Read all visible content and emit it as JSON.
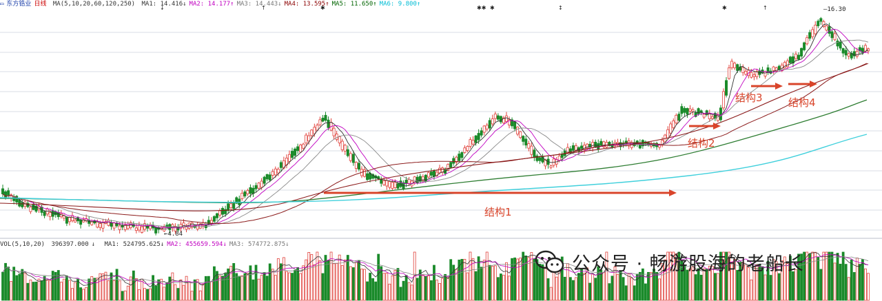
{
  "header": {
    "stock_name": "东方锆业",
    "period": "日线",
    "ma_params": "MA(5,10,20,60,120,250)",
    "ma_readouts": [
      {
        "label": "MA1:",
        "value": "14.416",
        "arrow": "↓",
        "color": "#333333"
      },
      {
        "label": "MA2:",
        "value": "14.177",
        "arrow": "↑",
        "color": "#c000c0"
      },
      {
        "label": "MA3:",
        "value": "14.443",
        "arrow": "↓",
        "color": "#777777"
      },
      {
        "label": "MA4:",
        "value": "13.595",
        "arrow": "↑",
        "color": "#8b0000"
      },
      {
        "label": "MA5:",
        "value": "11.650",
        "arrow": "↑",
        "color": "#006400"
      },
      {
        "label": "MA6:",
        "value": "9.800",
        "arrow": "↑",
        "color": "#00bcd4"
      }
    ]
  },
  "volume_header": {
    "params": "VOL(5,10,20)",
    "vol_value": "396397.000",
    "vol_arrow": "↓",
    "ma_readouts": [
      {
        "label": "MA1:",
        "value": "524795.625",
        "arrow": "↓",
        "color": "#333333"
      },
      {
        "label": "MA2:",
        "value": "455659.594",
        "arrow": "↓",
        "color": "#c000c0"
      },
      {
        "label": "MA3:",
        "value": "574772.875",
        "arrow": "↓",
        "color": "#777777"
      }
    ]
  },
  "price_labels": {
    "high": "16.30",
    "low": "4.84"
  },
  "annotations": [
    "结构1",
    "结构2",
    "结构3",
    "结构4"
  ],
  "watermark": {
    "text": "公众号 · 畅游股海的老船长"
  },
  "colors": {
    "up": "#e0403a",
    "down": "#1a8a2a",
    "arrow": "#d9442a",
    "ma120": "#8b1a1a",
    "ma250_green": "#2e7d32",
    "ma_cyan": "#40d0dc",
    "ma5": "#333333",
    "ma10": "#c000c0",
    "ma20": "#888888"
  },
  "chart_data": {
    "type": "candlestick",
    "series_names": [
      "MA1",
      "MA2",
      "MA3",
      "MA4",
      "MA5",
      "MA6"
    ],
    "last_ma_values": [
      14.416,
      14.177,
      14.443,
      13.595,
      11.65,
      9.8
    ],
    "price_high": 16.3,
    "price_low": 4.84
  }
}
